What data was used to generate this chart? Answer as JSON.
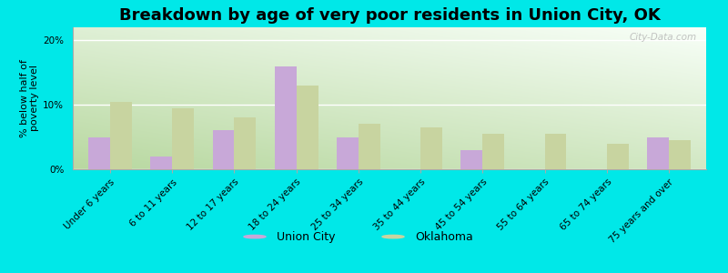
{
  "title": "Breakdown by age of very poor residents in Union City, OK",
  "ylabel": "% below half of\npoverty level",
  "categories": [
    "Under 6 years",
    "6 to 11 years",
    "12 to 17 years",
    "18 to 24 years",
    "25 to 34 years",
    "35 to 44 years",
    "45 to 54 years",
    "55 to 64 years",
    "65 to 74 years",
    "75 years and over"
  ],
  "union_city_values": [
    5.0,
    2.0,
    6.0,
    16.0,
    5.0,
    0.0,
    3.0,
    0.0,
    0.0,
    5.0
  ],
  "oklahoma_values": [
    10.5,
    9.5,
    8.0,
    13.0,
    7.0,
    6.5,
    5.5,
    5.5,
    4.0,
    4.5
  ],
  "union_city_color": "#c8a8d8",
  "oklahoma_color": "#c8d4a0",
  "background_color": "#00e8e8",
  "title_fontsize": 13,
  "ylabel_fontsize": 8,
  "tick_fontsize": 7.5,
  "legend_fontsize": 9,
  "ylim": [
    0,
    22
  ],
  "yticks": [
    0,
    10,
    20
  ],
  "bar_width": 0.35,
  "watermark": "City-Data.com"
}
